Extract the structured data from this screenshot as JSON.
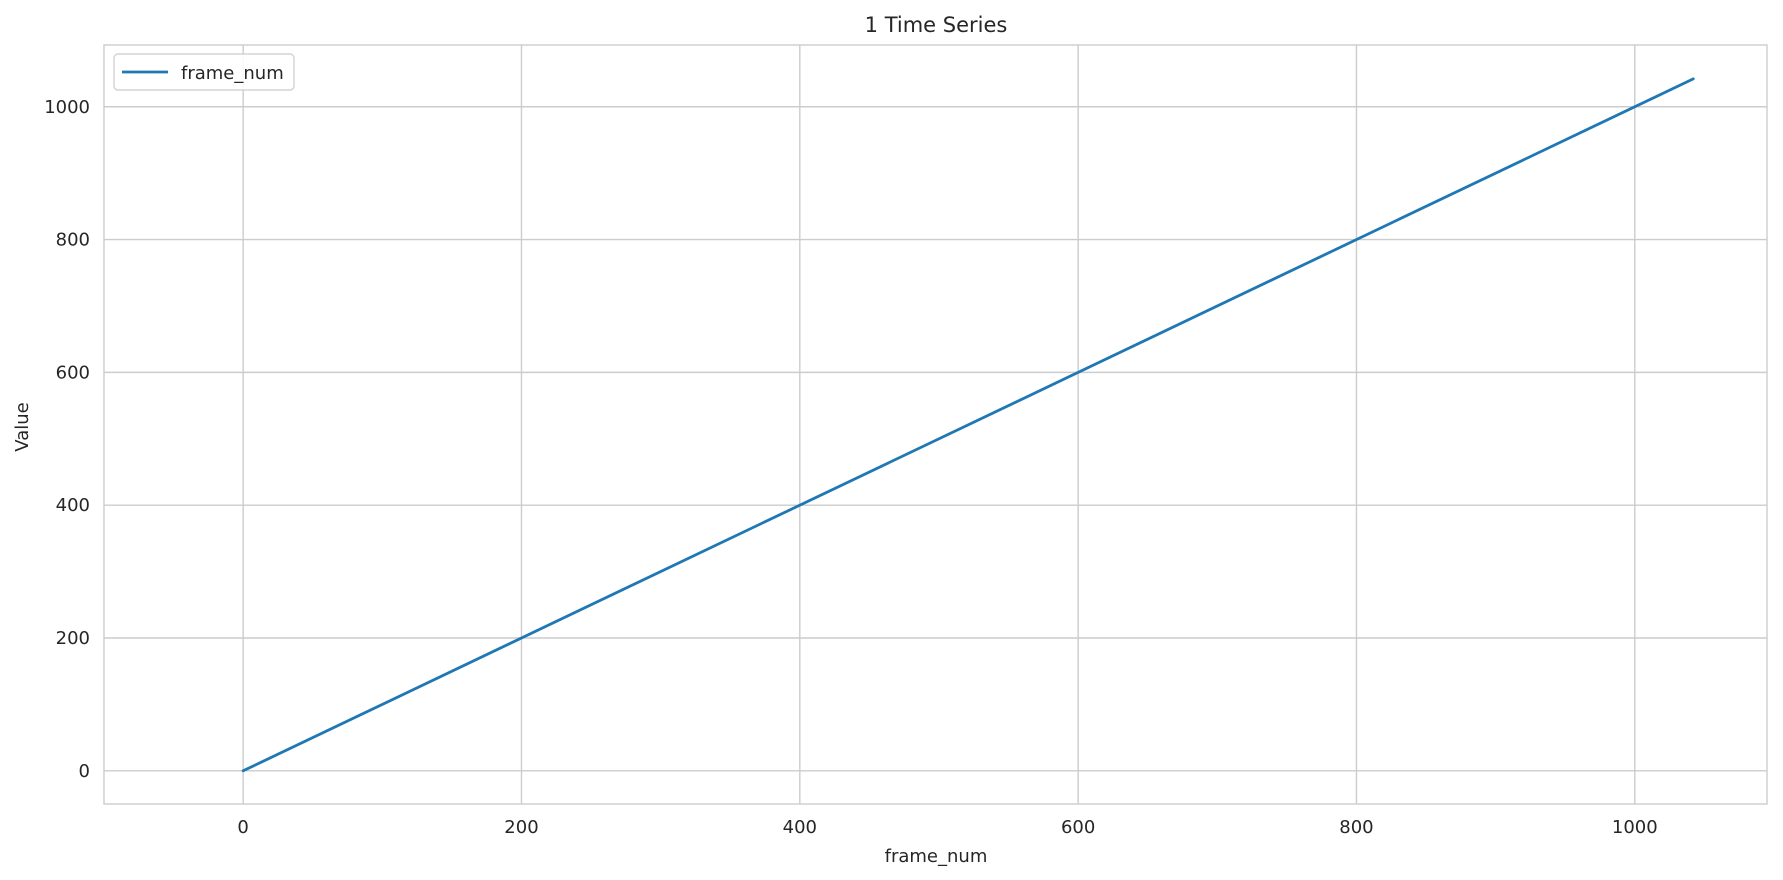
{
  "chart_data": {
    "type": "line",
    "title": "1 Time Series",
    "xlabel": "frame_num",
    "ylabel": "Value",
    "xlim": [
      -100,
      1095
    ],
    "ylim": [
      -50,
      1093
    ],
    "x_ticks": [
      0,
      200,
      400,
      600,
      800,
      1000
    ],
    "y_ticks": [
      0,
      200,
      400,
      600,
      800,
      1000
    ],
    "grid": true,
    "legend": {
      "position": "top-left"
    },
    "series": [
      {
        "name": "frame_num",
        "color": "#1f77b4",
        "x": [
          0,
          1042
        ],
        "y": [
          0,
          1042
        ]
      }
    ]
  }
}
